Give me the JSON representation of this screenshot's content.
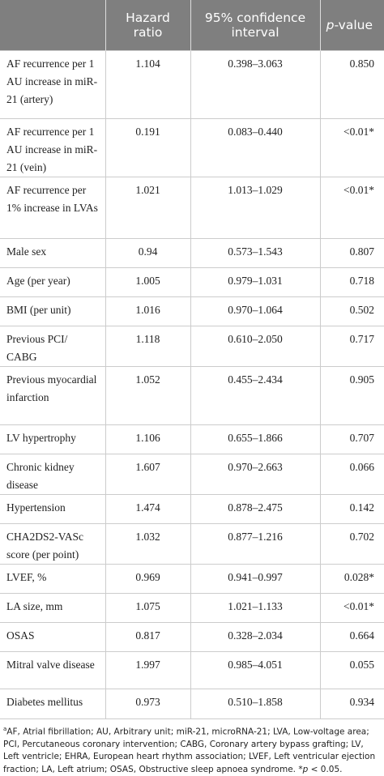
{
  "table": {
    "header": [
      "Hazard ratio",
      "95% confidence interval"
    ],
    "p_header": {
      "italic": "p",
      "rest": "-value"
    },
    "rows": [
      [
        "AF recurrence per 1 AU increase in miR-21 (artery)",
        "1.104",
        "0.398–3.063",
        "0.850"
      ],
      [
        "AF recurrence per 1 AU increase in miR-21 (vein)",
        "0.191",
        "0.083–0.440",
        "<0.01*"
      ],
      [
        "AF recurrence per 1% increase in LVAs",
        "1.021",
        "1.013–1.029",
        "<0.01*"
      ],
      [
        "Male sex",
        "0.94",
        "0.573–1.543",
        "0.807"
      ],
      [
        "Age (per year)",
        "1.005",
        "0.979–1.031",
        "0.718"
      ],
      [
        "BMI (per unit)",
        "1.016",
        "0.970–1.064",
        "0.502"
      ],
      [
        "Previous PCI/ CABG",
        "1.118",
        "0.610–2.050",
        "0.717"
      ],
      [
        "Previous myocardial infarction",
        "1.052",
        "0.455–2.434",
        "0.905"
      ],
      [
        "LV hypertrophy",
        "1.106",
        "0.655–1.866",
        "0.707"
      ],
      [
        "Chronic kidney disease",
        "1.607",
        "0.970–2.663",
        "0.066"
      ],
      [
        "Hypertension",
        "1.474",
        "0.878–2.475",
        "0.142"
      ],
      [
        "CHA2DS2-VASc score (per point)",
        "1.032",
        "0.877–1.216",
        "0.702"
      ],
      [
        "LVEF, %",
        "0.969",
        "0.941–0.997",
        "0.028*"
      ],
      [
        "LA size, mm",
        "1.075",
        "1.021–1.133",
        "<0.01*"
      ],
      [
        "OSAS",
        "0.817",
        "0.328–2.034",
        "0.664"
      ],
      [
        "Mitral valve disease",
        "1.997",
        "0.985–4.051",
        "0.055"
      ],
      [
        "Diabetes mellitus",
        "0.973",
        "0.510–1.858",
        "0.934"
      ]
    ]
  },
  "footnote": {
    "mark": "a",
    "text": "AF, Atrial fibrillation; AU, Arbitrary unit; miR-21, microRNA-21; LVA, Low-voltage area; PCI, Percutaneous coronary intervention; CABG, Coronary artery bypass grafting; LV, Left ventricle; EHRA, European heart rhythm association; LVEF, Left ventricular ejection fraction; LA, Left atrium; OSAS, Obstructive sleep apnoea syndrome.",
    "star": "*",
    "p": "p",
    "tail": "< 0.05."
  }
}
